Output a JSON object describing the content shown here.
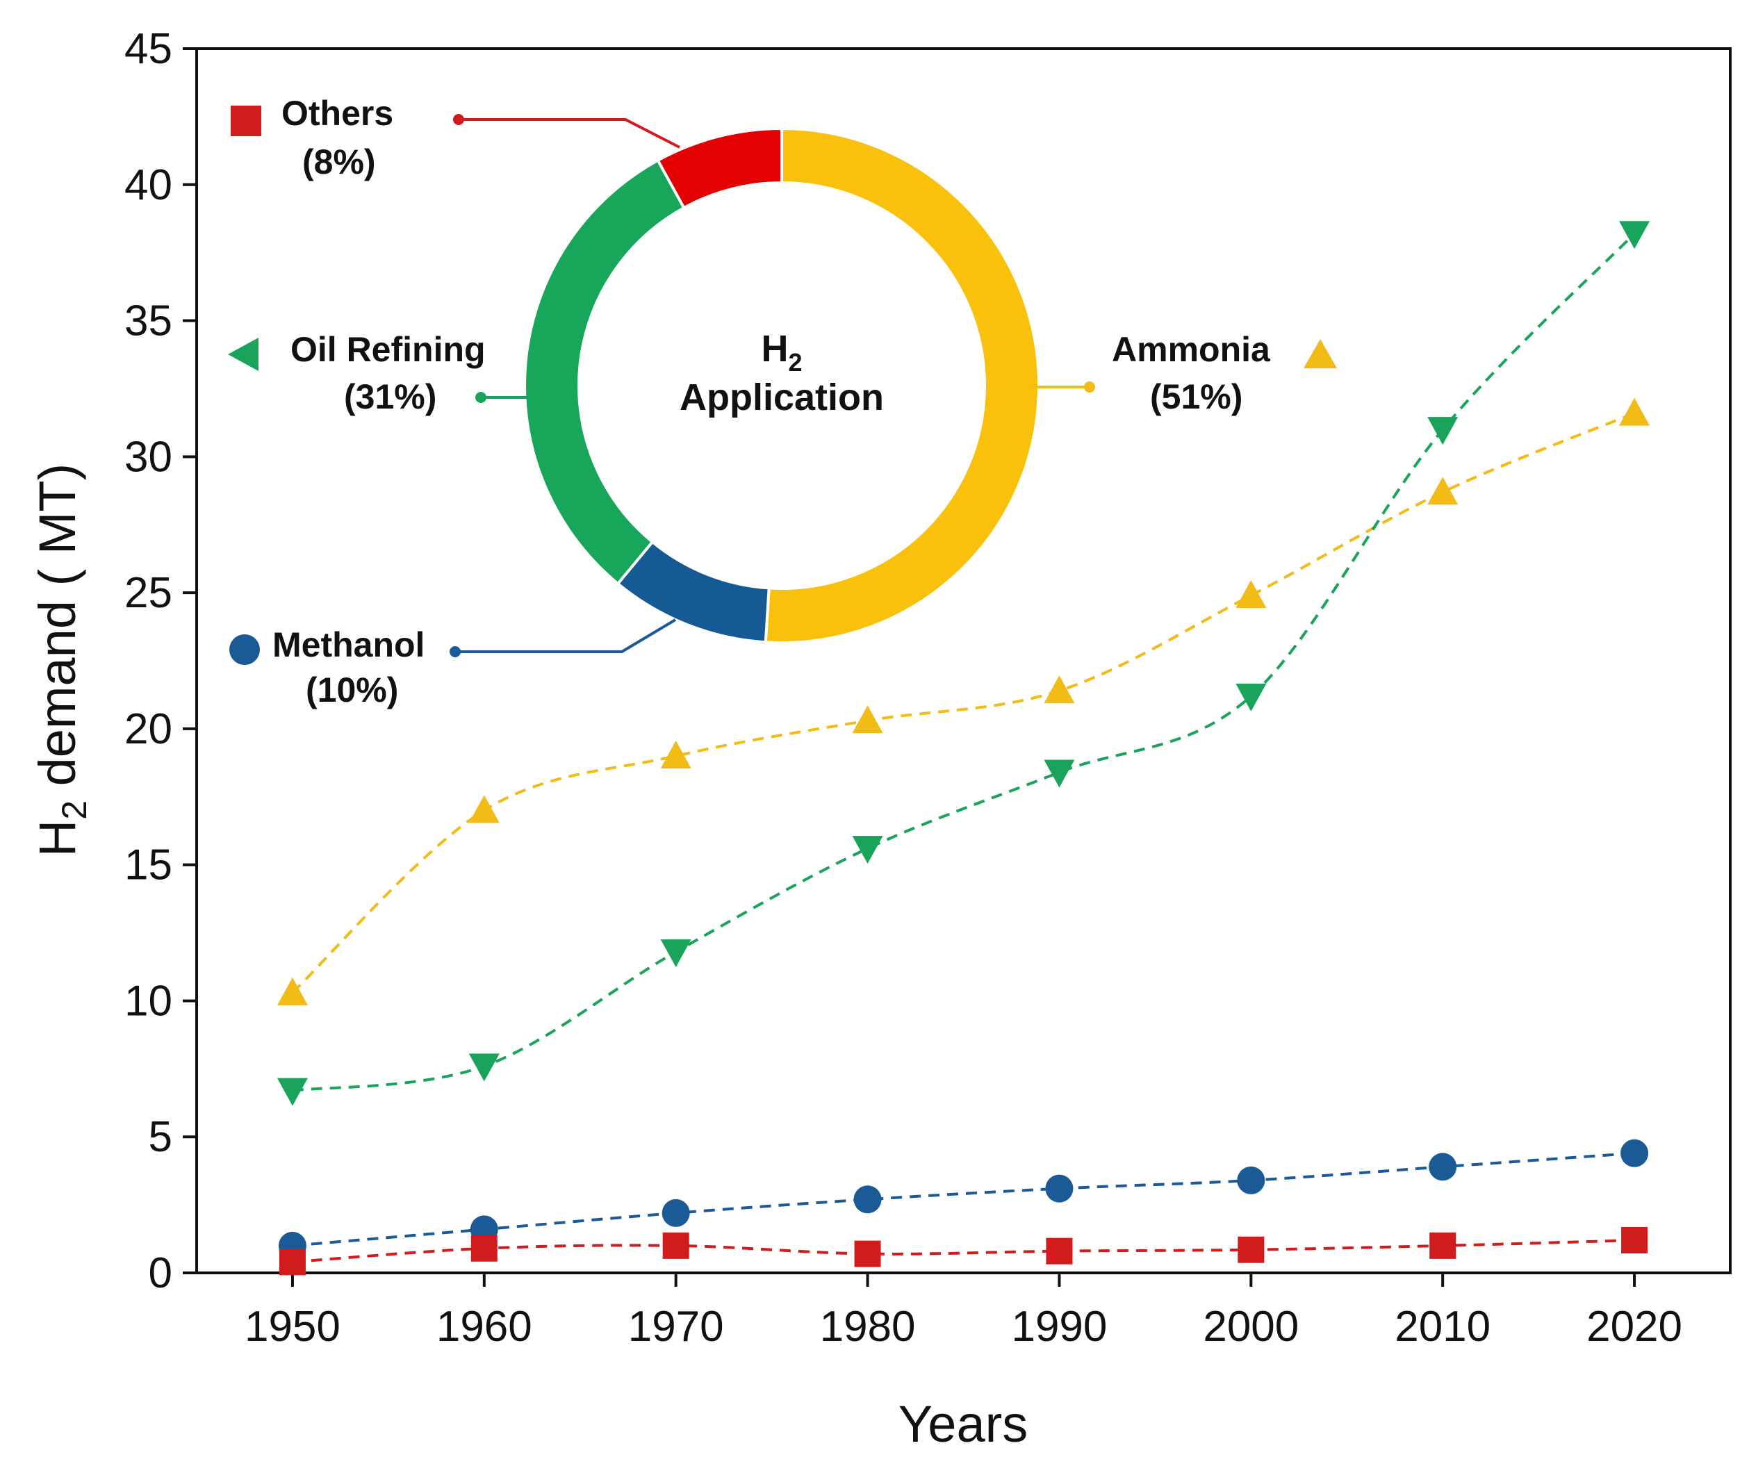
{
  "chart_data": {
    "type": "line",
    "title": "",
    "xlabel": "Years",
    "ylabel": {
      "main": "H",
      "sub": "2",
      "rest": " demand ( MT)"
    },
    "xlim": [
      1945,
      2025
    ],
    "ylim": [
      0,
      45
    ],
    "x_ticks": [
      "1950",
      "1960",
      "1970",
      "1980",
      "1990",
      "2000",
      "2010",
      "2020"
    ],
    "y_ticks": [
      "0",
      "5",
      "10",
      "15",
      "20",
      "25",
      "30",
      "35",
      "40",
      "45"
    ],
    "x": [
      1950,
      1960,
      1970,
      1980,
      1990,
      2000,
      2010,
      2020
    ],
    "series": [
      {
        "name": "Ammonia",
        "marker": "triangle-up",
        "color": "#f2bb16",
        "values": [
          10.3,
          17.0,
          19.0,
          20.3,
          21.4,
          24.9,
          28.7,
          31.6
        ]
      },
      {
        "name": "Oil Refining",
        "marker": "triangle-down",
        "color": "#1aa35a",
        "values": [
          6.7,
          7.6,
          11.8,
          15.6,
          18.4,
          21.2,
          31.0,
          38.2
        ]
      },
      {
        "name": "Methanol",
        "marker": "circle",
        "color": "#1a5a96",
        "values": [
          1.0,
          1.6,
          2.2,
          2.7,
          3.1,
          3.4,
          3.9,
          4.4
        ]
      },
      {
        "name": "Others",
        "marker": "square",
        "color": "#d01c1c",
        "values": [
          0.4,
          0.9,
          1.0,
          0.7,
          0.8,
          0.85,
          1.0,
          1.2
        ]
      }
    ],
    "inset_donut": {
      "center_title": {
        "main": "H",
        "sub": "2",
        "line2": "Application"
      },
      "slices": [
        {
          "name": "Ammonia",
          "percent_label": "(51%)",
          "value": 51,
          "color": "#f9c00c"
        },
        {
          "name": "Methanol",
          "percent_label": "(10%)",
          "value": 10,
          "color": "#155a94"
        },
        {
          "name": "Oil Refining",
          "percent_label": "(31%)",
          "value": 31,
          "color": "#18a75a"
        },
        {
          "name": "Others",
          "percent_label": "(8%)",
          "value": 8,
          "color": "#e20000"
        }
      ]
    }
  }
}
